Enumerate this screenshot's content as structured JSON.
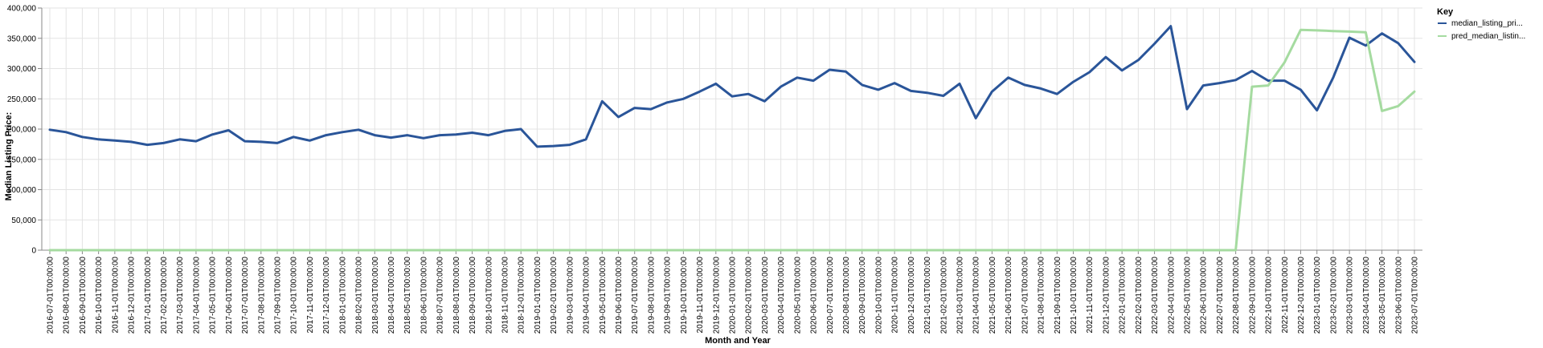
{
  "chart_data": {
    "type": "line",
    "xlabel": "Month and Year",
    "ylabel": "Median Listing Price:",
    "ylim": [
      0,
      400000
    ],
    "yticks": [
      "0",
      "50,000",
      "100,000",
      "150,000",
      "200,000",
      "250,000",
      "300,000",
      "350,000",
      "400,000"
    ],
    "grid": true,
    "legend_position": "top-right",
    "legend_title": "Key",
    "x": [
      "2016-07-01T00:00:00",
      "2016-08-01T00:00:00",
      "2016-09-01T00:00:00",
      "2016-10-01T00:00:00",
      "2016-11-01T00:00:00",
      "2016-12-01T00:00:00",
      "2017-01-01T00:00:00",
      "2017-02-01T00:00:00",
      "2017-03-01T00:00:00",
      "2017-04-01T00:00:00",
      "2017-05-01T00:00:00",
      "2017-06-01T00:00:00",
      "2017-07-01T00:00:00",
      "2017-08-01T00:00:00",
      "2017-09-01T00:00:00",
      "2017-10-01T00:00:00",
      "2017-11-01T00:00:00",
      "2017-12-01T00:00:00",
      "2018-01-01T00:00:00",
      "2018-02-01T00:00:00",
      "2018-03-01T00:00:00",
      "2018-04-01T00:00:00",
      "2018-05-01T00:00:00",
      "2018-06-01T00:00:00",
      "2018-07-01T00:00:00",
      "2018-08-01T00:00:00",
      "2018-09-01T00:00:00",
      "2018-10-01T00:00:00",
      "2018-11-01T00:00:00",
      "2018-12-01T00:00:00",
      "2019-01-01T00:00:00",
      "2019-02-01T00:00:00",
      "2019-03-01T00:00:00",
      "2019-04-01T00:00:00",
      "2019-05-01T00:00:00",
      "2019-06-01T00:00:00",
      "2019-07-01T00:00:00",
      "2019-08-01T00:00:00",
      "2019-09-01T00:00:00",
      "2019-10-01T00:00:00",
      "2019-11-01T00:00:00",
      "2019-12-01T00:00:00",
      "2020-01-01T00:00:00",
      "2020-02-01T00:00:00",
      "2020-03-01T00:00:00",
      "2020-04-01T00:00:00",
      "2020-05-01T00:00:00",
      "2020-06-01T00:00:00",
      "2020-07-01T00:00:00",
      "2020-08-01T00:00:00",
      "2020-09-01T00:00:00",
      "2020-10-01T00:00:00",
      "2020-11-01T00:00:00",
      "2020-12-01T00:00:00",
      "2021-01-01T00:00:00",
      "2021-02-01T00:00:00",
      "2021-03-01T00:00:00",
      "2021-04-01T00:00:00",
      "2021-05-01T00:00:00",
      "2021-06-01T00:00:00",
      "2021-07-01T00:00:00",
      "2021-08-01T00:00:00",
      "2021-09-01T00:00:00",
      "2021-10-01T00:00:00",
      "2021-11-01T00:00:00",
      "2021-12-01T00:00:00",
      "2022-01-01T00:00:00",
      "2022-02-01T00:00:00",
      "2022-03-01T00:00:00",
      "2022-04-01T00:00:00",
      "2022-05-01T00:00:00",
      "2022-06-01T00:00:00",
      "2022-07-01T00:00:00",
      "2022-08-01T00:00:00",
      "2022-09-01T00:00:00",
      "2022-10-01T00:00:00",
      "2022-11-01T00:00:00",
      "2022-12-01T00:00:00",
      "2023-01-01T00:00:00",
      "2023-02-01T00:00:00",
      "2023-03-01T00:00:00",
      "2023-04-01T00:00:00",
      "2023-05-01T00:00:00",
      "2023-06-01T00:00:00",
      "2023-07-01T00:00:00"
    ],
    "series": [
      {
        "name": "median_listing_pri...",
        "color": "#2a5599",
        "values": [
          199000,
          195000,
          187000,
          183000,
          181000,
          179000,
          174000,
          177000,
          183000,
          180000,
          191000,
          198000,
          180000,
          179000,
          177000,
          187000,
          181000,
          190000,
          195000,
          199000,
          190000,
          186000,
          190000,
          185000,
          190000,
          191000,
          194000,
          190000,
          197000,
          200000,
          171000,
          172000,
          174000,
          183000,
          246000,
          220000,
          235000,
          233000,
          244000,
          250000,
          262000,
          275000,
          254000,
          258000,
          246000,
          270000,
          285000,
          280000,
          298000,
          295000,
          273000,
          265000,
          276000,
          263000,
          260000,
          255000,
          275000,
          218000,
          262000,
          285000,
          273000,
          267000,
          258000,
          278000,
          294000,
          319000,
          297000,
          314000,
          341000,
          370000,
          233000,
          272000,
          276000,
          281000,
          296000,
          280000,
          280000,
          265000,
          231000,
          285000,
          351000,
          338000,
          358000,
          342000,
          311000
        ]
      },
      {
        "name": "pred_median_listin...",
        "color": "#a5dba0",
        "values": [
          0,
          0,
          0,
          0,
          0,
          0,
          0,
          0,
          0,
          0,
          0,
          0,
          0,
          0,
          0,
          0,
          0,
          0,
          0,
          0,
          0,
          0,
          0,
          0,
          0,
          0,
          0,
          0,
          0,
          0,
          0,
          0,
          0,
          0,
          0,
          0,
          0,
          0,
          0,
          0,
          0,
          0,
          0,
          0,
          0,
          0,
          0,
          0,
          0,
          0,
          0,
          0,
          0,
          0,
          0,
          0,
          0,
          0,
          0,
          0,
          0,
          0,
          0,
          0,
          0,
          0,
          0,
          0,
          0,
          0,
          0,
          0,
          0,
          0,
          270000,
          272000,
          310000,
          364000,
          363000,
          362000,
          361000,
          360000,
          230000,
          238000,
          262000
        ]
      }
    ]
  }
}
